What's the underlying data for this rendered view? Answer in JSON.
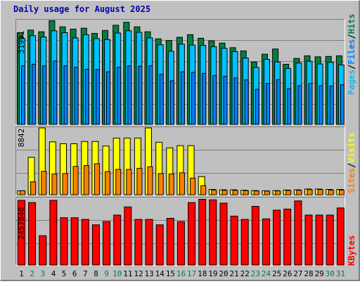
{
  "title": "Daily usage for August 2025",
  "colors": {
    "background": "#c0c0c0",
    "hits": "#008040",
    "files": "#00c0ff",
    "pages": "#0080ff",
    "visits": "#ffff00",
    "sites": "#ff8000",
    "kbytes": "#ff0000",
    "label_blue": "#0000b0",
    "weekend_day": "#008040"
  },
  "chart_data": [
    {
      "type": "bar",
      "panel": "top",
      "axis_max_label": "31991",
      "ylim": [
        0,
        31991
      ],
      "legend": [
        "Pages",
        "/",
        "Files",
        "/",
        "Hits"
      ],
      "categories": [
        "1",
        "2",
        "3",
        "4",
        "5",
        "6",
        "7",
        "8",
        "9",
        "10",
        "11",
        "12",
        "13",
        "14",
        "15",
        "16",
        "17",
        "18",
        "19",
        "20",
        "21",
        "22",
        "23",
        "24",
        "25",
        "26",
        "27",
        "28",
        "29",
        "30",
        "31"
      ],
      "series": [
        {
          "name": "Hits",
          "values": [
            28200,
            29000,
            28500,
            31900,
            30000,
            29300,
            29600,
            28000,
            28900,
            30500,
            31400,
            30000,
            28500,
            26300,
            25800,
            26800,
            27600,
            26500,
            25700,
            25000,
            23600,
            22600,
            19200,
            21600,
            23200,
            18500,
            20300,
            21100,
            20800,
            20900,
            21100
          ]
        },
        {
          "name": "Files",
          "values": [
            26400,
            27300,
            26900,
            28800,
            28200,
            26600,
            27600,
            26400,
            26100,
            28100,
            28800,
            28300,
            26600,
            24500,
            22500,
            24700,
            24400,
            24300,
            23900,
            23400,
            22400,
            20400,
            17500,
            20000,
            19200,
            17200,
            18900,
            19400,
            18600,
            19100,
            18300
          ]
        },
        {
          "name": "Pages",
          "values": [
            18000,
            18500,
            18000,
            19500,
            18000,
            17600,
            17000,
            16900,
            16200,
            17600,
            18000,
            17900,
            18000,
            15400,
            13400,
            16200,
            16000,
            15700,
            15000,
            14800,
            14300,
            13700,
            10800,
            12600,
            13800,
            11000,
            11900,
            12600,
            11900,
            11800,
            12200
          ]
        }
      ]
    },
    {
      "type": "bar",
      "panel": "middle",
      "axis_max_label": "8842",
      "ylim": [
        0,
        8842
      ],
      "legend": [
        "Sites",
        "/",
        "Visits"
      ],
      "categories": [
        "1",
        "2",
        "3",
        "4",
        "5",
        "6",
        "7",
        "8",
        "9",
        "10",
        "11",
        "12",
        "13",
        "14",
        "15",
        "16",
        "17",
        "18",
        "19",
        "20",
        "21",
        "22",
        "23",
        "24",
        "25",
        "26",
        "27",
        "28",
        "29",
        "30",
        "31"
      ],
      "series": [
        {
          "name": "Visits",
          "values": [
            520,
            4950,
            8842,
            7000,
            6750,
            6750,
            7050,
            7050,
            6450,
            7500,
            7500,
            7500,
            8842,
            6950,
            6200,
            6500,
            6500,
            2400,
            700,
            650,
            650,
            600,
            550,
            520,
            550,
            620,
            650,
            750,
            750,
            700,
            700
          ]
        },
        {
          "name": "Sites",
          "values": [
            520,
            1700,
            3100,
            2750,
            2800,
            3750,
            3850,
            4100,
            3050,
            3350,
            3350,
            3500,
            3700,
            2800,
            2750,
            2900,
            2200,
            1200,
            620,
            580,
            580,
            540,
            500,
            480,
            500,
            560,
            580,
            680,
            680,
            620,
            620
          ]
        }
      ]
    },
    {
      "type": "bar",
      "panel": "bottom",
      "axis_max_label": "2457840",
      "ylim": [
        0,
        2457840
      ],
      "legend": [
        "KBytes"
      ],
      "categories": [
        "1",
        "2",
        "3",
        "4",
        "5",
        "6",
        "7",
        "8",
        "9",
        "10",
        "11",
        "12",
        "13",
        "14",
        "15",
        "16",
        "17",
        "18",
        "19",
        "20",
        "21",
        "22",
        "23",
        "24",
        "25",
        "26",
        "27",
        "28",
        "29",
        "30",
        "31"
      ],
      "series": [
        {
          "name": "KBytes",
          "values": [
            2380000,
            2300000,
            1080000,
            2380000,
            1740000,
            1740000,
            1680000,
            1480000,
            1600000,
            1840000,
            2140000,
            1680000,
            1680000,
            1480000,
            1720000,
            1600000,
            2300000,
            2420000,
            2400000,
            2280000,
            1800000,
            1680000,
            2160000,
            1700000,
            2020000,
            2060000,
            2360000,
            1840000,
            1840000,
            1840000,
            2100000
          ]
        }
      ]
    }
  ],
  "day_labels": [
    "1",
    "2",
    "3",
    "4",
    "5",
    "6",
    "7",
    "8",
    "9",
    "10",
    "11",
    "12",
    "13",
    "14",
    "15",
    "16",
    "17",
    "18",
    "19",
    "20",
    "21",
    "22",
    "23",
    "24",
    "25",
    "26",
    "27",
    "28",
    "29",
    "30",
    "31"
  ],
  "weekend_days": [
    "2",
    "3",
    "9",
    "10",
    "16",
    "17",
    "23",
    "24",
    "30",
    "31"
  ]
}
